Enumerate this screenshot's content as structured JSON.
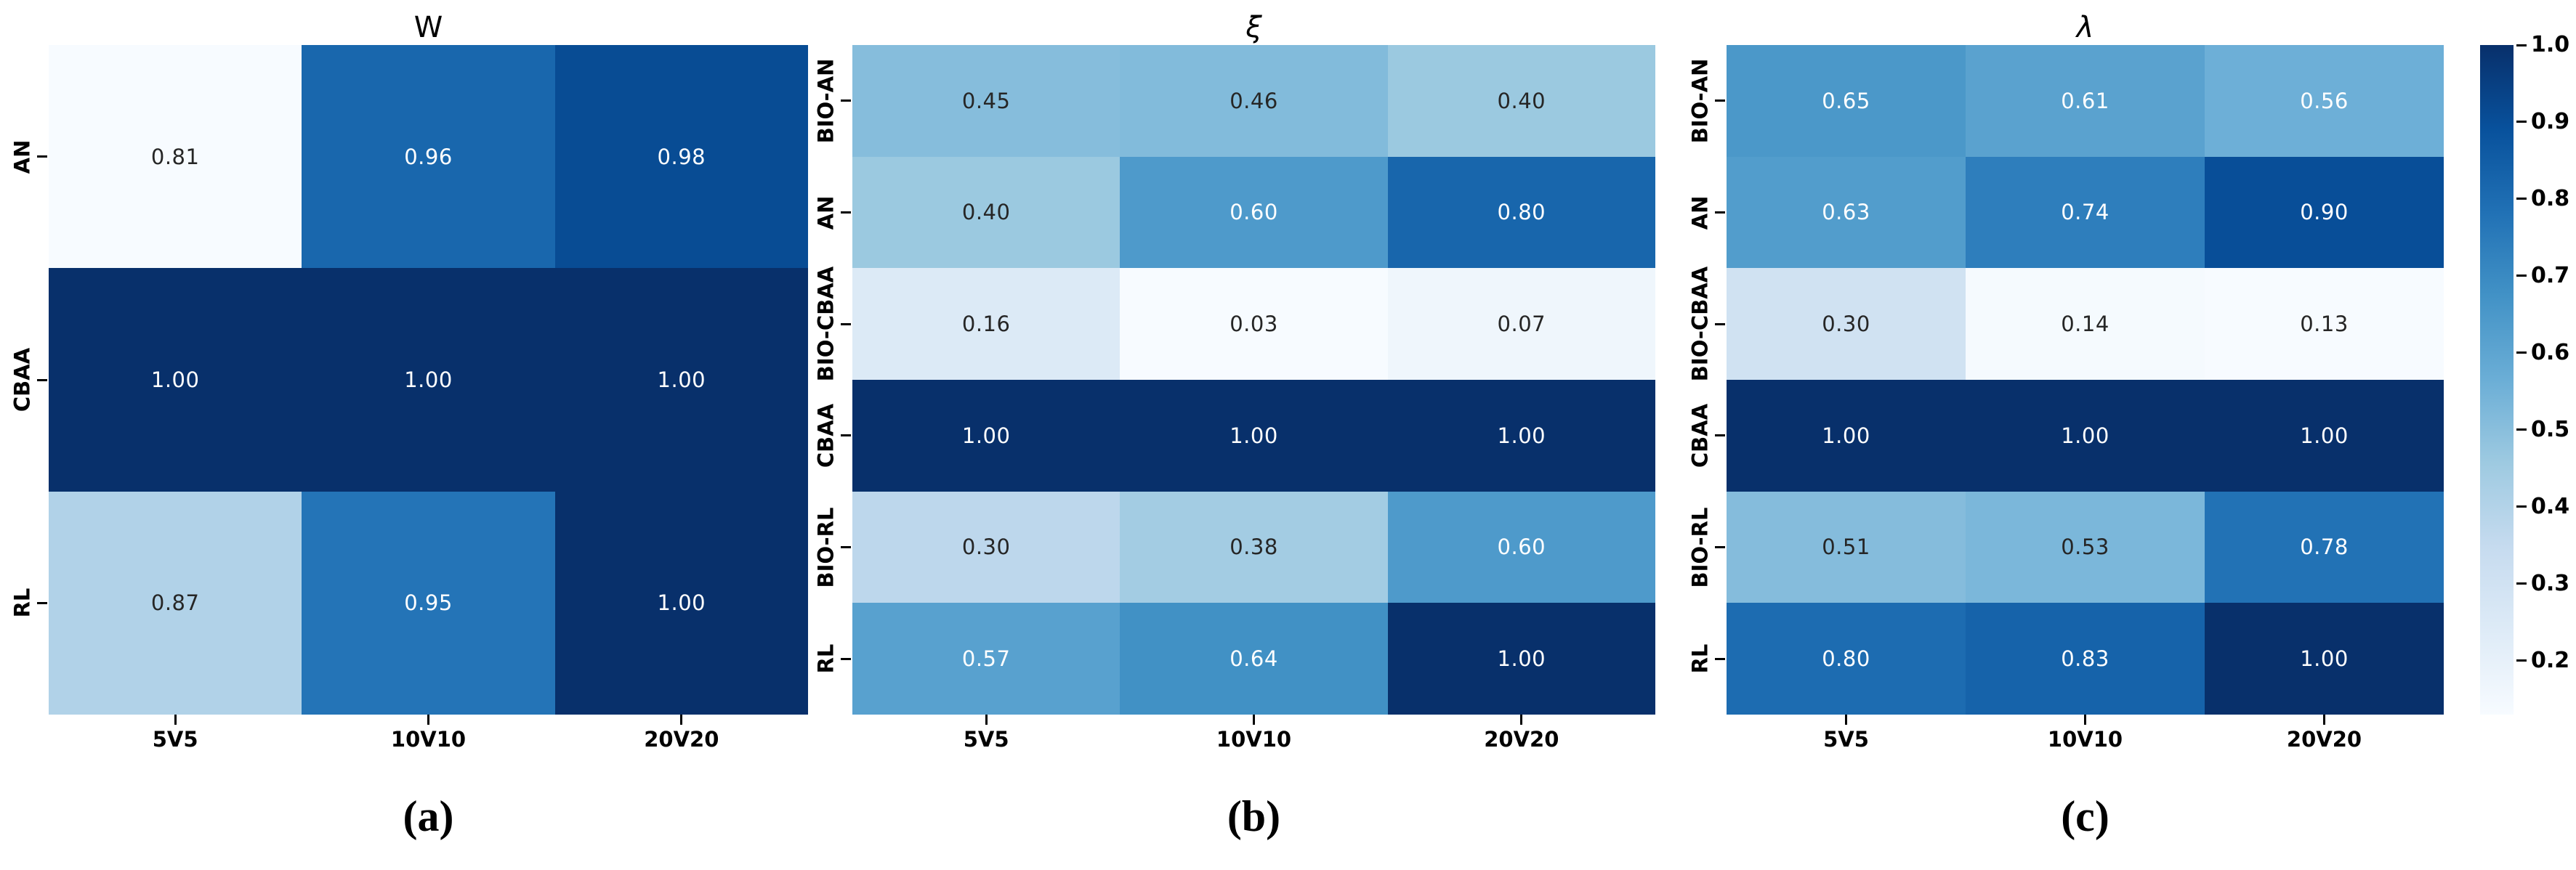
{
  "chart_data": {
    "type": "heatmap",
    "description_note": "Three annotated heatmaps sharing x categories, with one colorbar",
    "x_categories": [
      "5V5",
      "10V10",
      "20V20"
    ],
    "panels": [
      {
        "id": "a",
        "title": "W",
        "title_style": "normal",
        "caption": "(a)",
        "y_categories": [
          "AN",
          "CBAA",
          "RL"
        ],
        "values": [
          [
            0.81,
            0.96,
            0.98
          ],
          [
            1.0,
            1.0,
            1.0
          ],
          [
            0.87,
            0.95,
            1.0
          ]
        ],
        "vmin": 0.81,
        "vmax": 1.0
      },
      {
        "id": "b",
        "title": "ξ",
        "title_style": "italic",
        "caption": "(b)",
        "y_categories": [
          "BIO-AN",
          "AN",
          "BIO-CBAA",
          "CBAA",
          "BIO-RL",
          "RL"
        ],
        "values": [
          [
            0.45,
            0.46,
            0.4
          ],
          [
            0.4,
            0.6,
            0.8
          ],
          [
            0.16,
            0.03,
            0.07
          ],
          [
            1.0,
            1.0,
            1.0
          ],
          [
            0.3,
            0.38,
            0.6
          ],
          [
            0.57,
            0.64,
            1.0
          ]
        ],
        "vmin": 0.03,
        "vmax": 1.0
      },
      {
        "id": "c",
        "title": "λ",
        "title_style": "italic",
        "caption": "(c)",
        "y_categories": [
          "BIO-AN",
          "AN",
          "BIO-CBAA",
          "CBAA",
          "BIO-RL",
          "RL"
        ],
        "values": [
          [
            0.65,
            0.61,
            0.56
          ],
          [
            0.63,
            0.74,
            0.9
          ],
          [
            0.3,
            0.14,
            0.13
          ],
          [
            1.0,
            1.0,
            1.0
          ],
          [
            0.51,
            0.53,
            0.78
          ],
          [
            0.8,
            0.83,
            1.0
          ]
        ],
        "vmin": 0.13,
        "vmax": 1.0
      }
    ],
    "colorbar": {
      "ticks": [
        1.0,
        0.9,
        0.8,
        0.7,
        0.6,
        0.5,
        0.4,
        0.3,
        0.2
      ],
      "vmin": 0.13,
      "vmax": 1.0,
      "position": "right"
    },
    "colormap": {
      "name": "Blues",
      "stops": [
        "#f7fbff",
        "#deebf7",
        "#c6dbef",
        "#9ecae1",
        "#6baed6",
        "#4292c6",
        "#2171b5",
        "#08519c",
        "#08306b"
      ]
    },
    "annotation_colors": {
      "light": "#ffffff",
      "dark": "#262626"
    },
    "grid": false,
    "legend": "none"
  }
}
